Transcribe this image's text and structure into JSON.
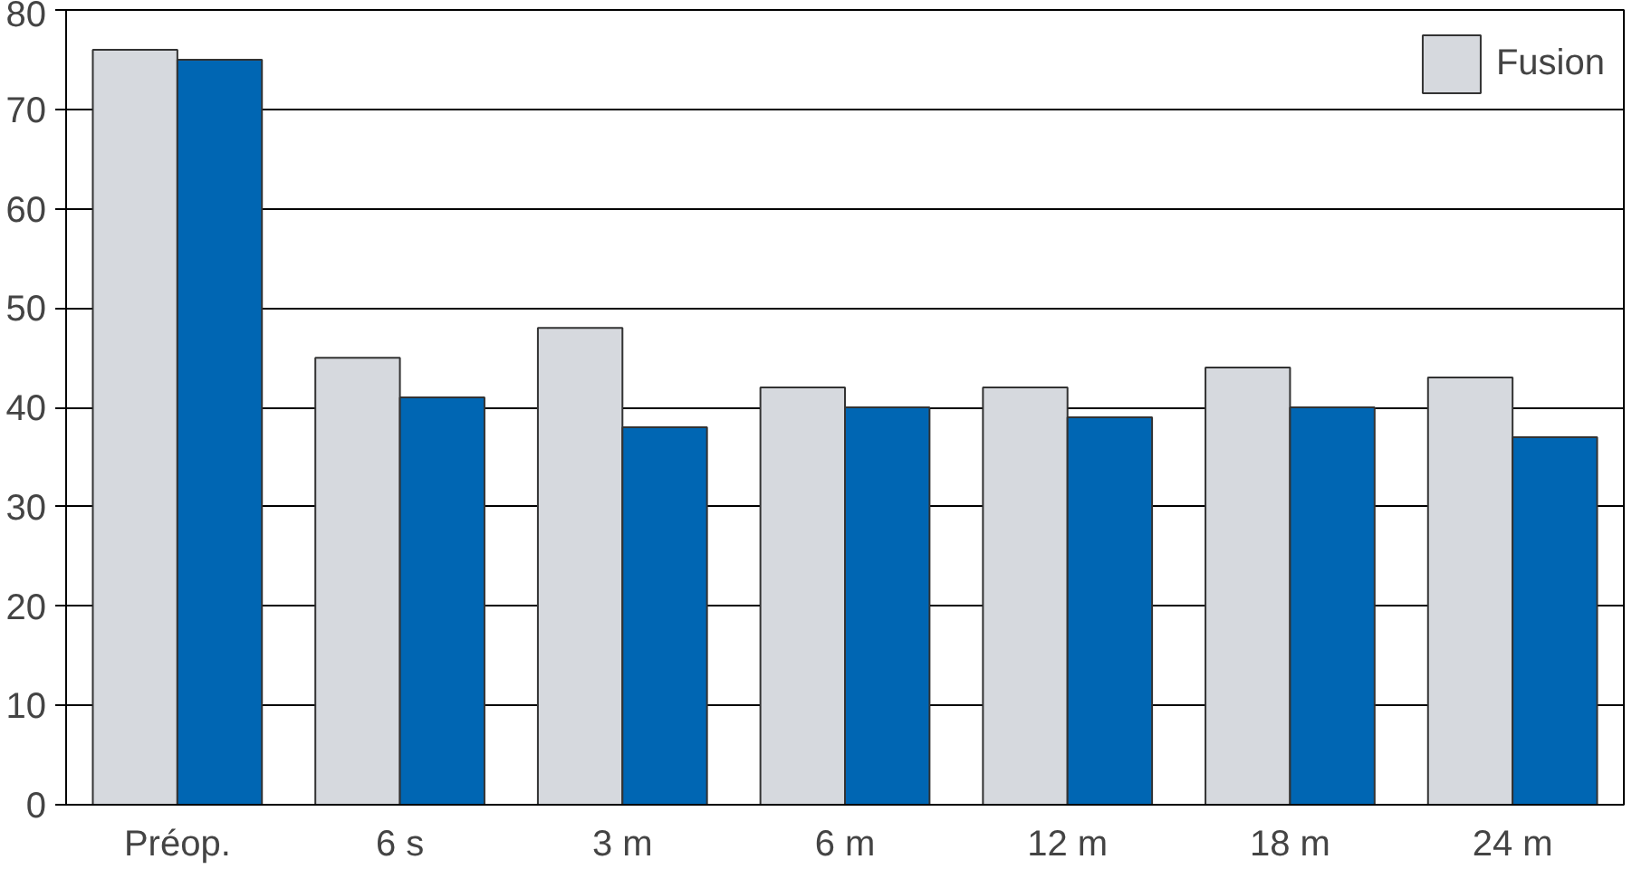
{
  "chart_data": {
    "type": "bar",
    "categories": [
      "Préop.",
      "6 s",
      "3 m",
      "6 m",
      "12 m",
      "18 m",
      "24 m"
    ],
    "series": [
      {
        "name": "Fusion",
        "color": "#d6d9de",
        "values": [
          76,
          45,
          48,
          42,
          42,
          44,
          43
        ]
      },
      {
        "color": "#0066b3",
        "values": [
          75,
          41,
          38,
          40,
          39,
          40,
          37
        ]
      }
    ],
    "ylim": [
      0,
      80
    ],
    "yticks": [
      0,
      10,
      20,
      30,
      40,
      50,
      60,
      70,
      80
    ],
    "grid": "y",
    "legend": "top right"
  }
}
